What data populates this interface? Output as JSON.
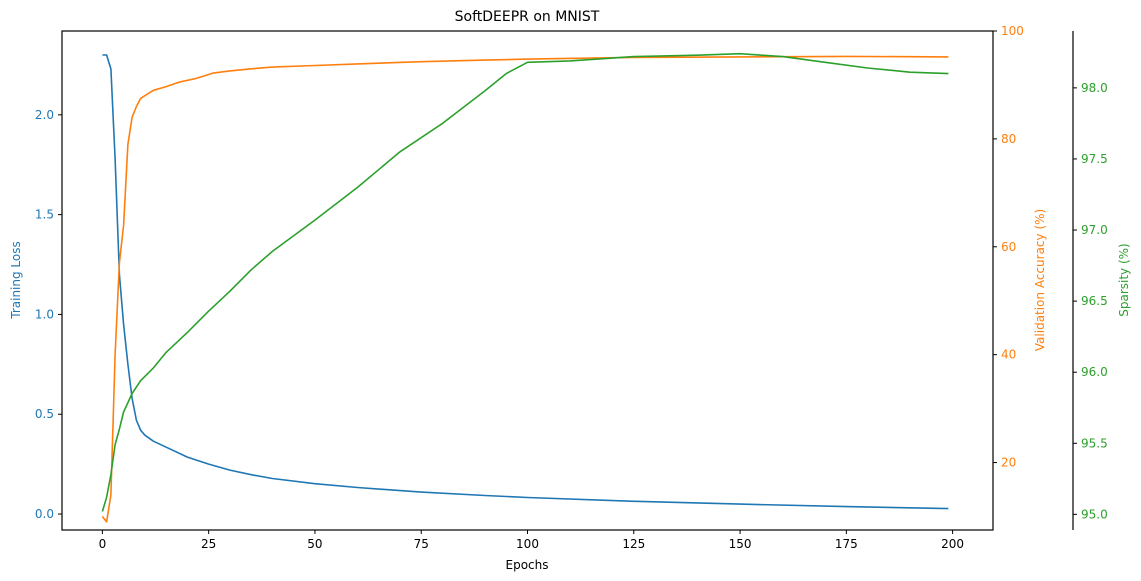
{
  "chart_data": {
    "type": "line",
    "title": "SoftDEEPR on MNIST",
    "xlabel": "Epochs",
    "xlim": [
      -9.5,
      209.5
    ],
    "xticks": [
      0,
      25,
      50,
      75,
      100,
      125,
      150,
      175,
      200
    ],
    "axes": {
      "loss": {
        "label": "Training Loss",
        "color": "#1f77b4",
        "side": "left",
        "ylim": [
          -0.08,
          2.42
        ],
        "ticks": [
          0.0,
          0.5,
          1.0,
          1.5,
          2.0
        ],
        "tick_labels": [
          "0.0",
          "0.5",
          "1.0",
          "1.5",
          "2.0"
        ]
      },
      "accuracy": {
        "label": "Validation Accuracy (%)",
        "color": "#ff7f0e",
        "side": "right",
        "ylim": [
          7.5,
          100
        ],
        "ticks": [
          20,
          40,
          60,
          80,
          100
        ],
        "tick_labels": [
          "20",
          "40",
          "60",
          "80",
          "100"
        ]
      },
      "sparsity": {
        "label": "Sparsity (%)",
        "color": "#2ca02c",
        "side": "right-offset",
        "ylim": [
          94.89,
          98.4
        ],
        "ticks": [
          95.0,
          95.5,
          96.0,
          96.5,
          97.0,
          97.5,
          98.0
        ],
        "tick_labels": [
          "95.0",
          "95.5",
          "96.0",
          "96.5",
          "97.0",
          "97.5",
          "98.0"
        ]
      }
    },
    "series": [
      {
        "name": "Training Loss",
        "axis": "loss",
        "points": [
          [
            0,
            2.3
          ],
          [
            1,
            2.3
          ],
          [
            2,
            2.23
          ],
          [
            3,
            1.78
          ],
          [
            4,
            1.2
          ],
          [
            5,
            0.95
          ],
          [
            6,
            0.75
          ],
          [
            7,
            0.58
          ],
          [
            8,
            0.47
          ],
          [
            9,
            0.42
          ],
          [
            10,
            0.395
          ],
          [
            12,
            0.365
          ],
          [
            15,
            0.335
          ],
          [
            20,
            0.285
          ],
          [
            25,
            0.25
          ],
          [
            30,
            0.22
          ],
          [
            35,
            0.197
          ],
          [
            40,
            0.178
          ],
          [
            50,
            0.152
          ],
          [
            60,
            0.133
          ],
          [
            75,
            0.11
          ],
          [
            90,
            0.093
          ],
          [
            100,
            0.083
          ],
          [
            125,
            0.064
          ],
          [
            150,
            0.05
          ],
          [
            175,
            0.037
          ],
          [
            199,
            0.027
          ]
        ]
      },
      {
        "name": "Validation Accuracy (%)",
        "axis": "accuracy",
        "points": [
          [
            0,
            10
          ],
          [
            1,
            9
          ],
          [
            2,
            14
          ],
          [
            3,
            40
          ],
          [
            4,
            57
          ],
          [
            5,
            64
          ],
          [
            6,
            79
          ],
          [
            7,
            84
          ],
          [
            8,
            86
          ],
          [
            9,
            87.5
          ],
          [
            10,
            88
          ],
          [
            12,
            89
          ],
          [
            15,
            89.7
          ],
          [
            18,
            90.5
          ],
          [
            22,
            91.2
          ],
          [
            26,
            92.2
          ],
          [
            30,
            92.6
          ],
          [
            35,
            93
          ],
          [
            40,
            93.3
          ],
          [
            50,
            93.6
          ],
          [
            60,
            93.9
          ],
          [
            75,
            94.3
          ],
          [
            90,
            94.6
          ],
          [
            100,
            94.8
          ],
          [
            125,
            95.1
          ],
          [
            150,
            95.2
          ],
          [
            175,
            95.3
          ],
          [
            199,
            95.2
          ]
        ]
      },
      {
        "name": "Sparsity (%)",
        "axis": "sparsity",
        "points": [
          [
            0,
            95.02
          ],
          [
            1,
            95.12
          ],
          [
            2,
            95.28
          ],
          [
            3,
            95.49
          ],
          [
            4,
            95.6
          ],
          [
            5,
            95.72
          ],
          [
            7,
            95.85
          ],
          [
            9,
            95.94
          ],
          [
            12,
            96.03
          ],
          [
            15,
            96.14
          ],
          [
            20,
            96.28
          ],
          [
            25,
            96.43
          ],
          [
            30,
            96.57
          ],
          [
            35,
            96.72
          ],
          [
            40,
            96.85
          ],
          [
            50,
            97.07
          ],
          [
            60,
            97.3
          ],
          [
            70,
            97.55
          ],
          [
            80,
            97.75
          ],
          [
            90,
            97.98
          ],
          [
            95,
            98.1
          ],
          [
            100,
            98.18
          ],
          [
            110,
            98.19
          ],
          [
            125,
            98.22
          ],
          [
            140,
            98.23
          ],
          [
            150,
            98.24
          ],
          [
            160,
            98.22
          ],
          [
            170,
            98.18
          ],
          [
            180,
            98.14
          ],
          [
            190,
            98.11
          ],
          [
            199,
            98.1
          ]
        ]
      }
    ]
  }
}
